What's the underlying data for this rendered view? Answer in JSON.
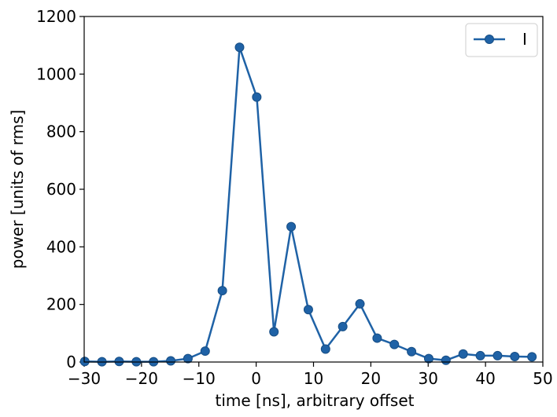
{
  "chart_data": {
    "type": "line",
    "xlabel": "time [ns], arbitrary offset",
    "ylabel": "power [units of rms]",
    "xlim": [
      -30,
      50
    ],
    "ylim": [
      0,
      1200
    ],
    "xticks": [
      -30,
      -20,
      -10,
      0,
      10,
      20,
      30,
      40,
      50
    ],
    "xtick_labels": [
      "−30",
      "−20",
      "−10",
      "0",
      "10",
      "20",
      "30",
      "40",
      "50"
    ],
    "yticks": [
      0,
      200,
      400,
      600,
      800,
      1000,
      1200
    ],
    "ytick_labels": [
      "0",
      "200",
      "400",
      "600",
      "800",
      "1000",
      "1200"
    ],
    "grid": false,
    "legend": {
      "position": "top-right",
      "entries": [
        "I"
      ]
    },
    "series": [
      {
        "name": "I",
        "color": "#1f62a6",
        "marker": "circle",
        "x": [
          -29.9,
          -26.9,
          -23.9,
          -20.9,
          -17.9,
          -14.9,
          -11.9,
          -8.9,
          -5.9,
          -2.9,
          0.1,
          3.1,
          6.1,
          9.1,
          12.1,
          15.1,
          18.1,
          21.1,
          24.1,
          27.1,
          30.1,
          33.1,
          36.1,
          39.1,
          42.1,
          45.1,
          48.1
        ],
        "y": [
          2,
          1,
          2,
          1,
          1,
          4,
          12,
          38,
          248,
          1093,
          920,
          105,
          470,
          182,
          45,
          123,
          202,
          83,
          61,
          36,
          12,
          6,
          28,
          22,
          22,
          19,
          18
        ]
      }
    ]
  }
}
